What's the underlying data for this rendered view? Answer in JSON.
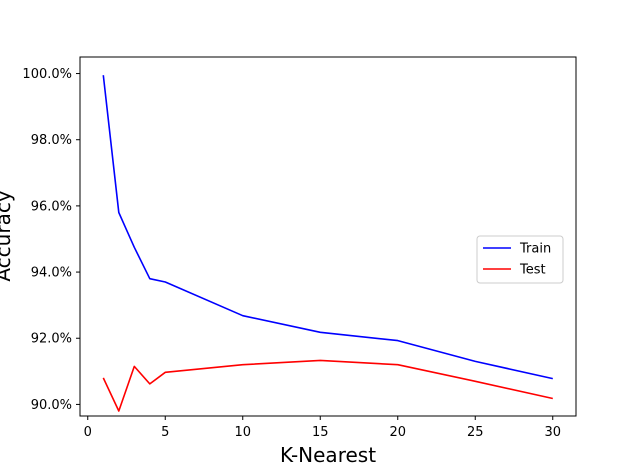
{
  "chart_data": {
    "type": "line",
    "title": "",
    "xlabel": "K-Nearest",
    "ylabel": "Accuracy",
    "xlim": [
      -0.5,
      31.5
    ],
    "ylim": [
      89.65,
      100.5
    ],
    "xticks": [
      0,
      5,
      10,
      15,
      20,
      25,
      30
    ],
    "xtick_labels": [
      "0",
      "5",
      "10",
      "15",
      "20",
      "25",
      "30"
    ],
    "yticks": [
      90,
      92,
      94,
      96,
      98,
      100
    ],
    "ytick_labels": [
      "90.0%",
      "92.0%",
      "94.0%",
      "96.0%",
      "98.0%",
      "100.0%"
    ],
    "grid": false,
    "legend_position": "center-right",
    "series": [
      {
        "name": "Train",
        "color": "#0000ff",
        "x": [
          1,
          2,
          3,
          4,
          5,
          10,
          15,
          20,
          25,
          30
        ],
        "y": [
          99.95,
          95.8,
          94.75,
          93.8,
          93.7,
          92.68,
          92.18,
          91.93,
          91.3,
          90.78
        ]
      },
      {
        "name": "Test",
        "color": "#ff0000",
        "x": [
          1,
          2,
          3,
          4,
          5,
          10,
          15,
          20,
          25,
          30
        ],
        "y": [
          90.8,
          89.8,
          91.15,
          90.62,
          90.97,
          91.2,
          91.33,
          91.2,
          90.7,
          90.18
        ]
      }
    ]
  }
}
